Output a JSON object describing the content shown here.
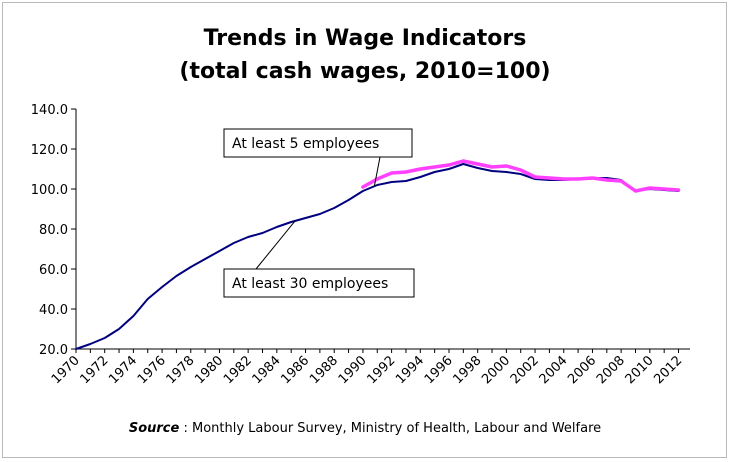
{
  "chart_data": {
    "type": "line",
    "title": "Trends in Wage Indicators",
    "subtitle": "(total cash wages, 2010=100)",
    "xlabel": "",
    "ylabel": "",
    "ylim": [
      20,
      140
    ],
    "yticks": [
      "20.0",
      "40.0",
      "60.0",
      "80.0",
      "100.0",
      "120.0",
      "140.0"
    ],
    "xticks": [
      "1970",
      "1972",
      "1974",
      "1976",
      "1978",
      "1980",
      "1982",
      "1984",
      "1986",
      "1988",
      "1990",
      "1992",
      "1994",
      "1996",
      "1998",
      "2000",
      "2002",
      "2004",
      "2006",
      "2008",
      "2010",
      "2012"
    ],
    "grid": false,
    "series": [
      {
        "name": "At least 30 employees",
        "color": "#00007f",
        "x": [
          1970,
          1971,
          1972,
          1973,
          1974,
          1975,
          1976,
          1977,
          1978,
          1979,
          1980,
          1981,
          1982,
          1983,
          1984,
          1985,
          1986,
          1987,
          1988,
          1989,
          1990,
          1991,
          1992,
          1993,
          1994,
          1995,
          1996,
          1997,
          1998,
          1999,
          2000,
          2001,
          2002,
          2003,
          2004,
          2005,
          2006,
          2007,
          2008,
          2009,
          2010,
          2011,
          2012
        ],
        "values": [
          20.0,
          22.5,
          25.5,
          30.0,
          36.5,
          45.0,
          51.0,
          56.5,
          61.0,
          65.0,
          69.0,
          73.0,
          76.0,
          78.0,
          81.0,
          83.5,
          85.5,
          87.5,
          90.5,
          94.5,
          99.0,
          102.0,
          103.5,
          104.0,
          106.0,
          108.5,
          110.0,
          112.5,
          110.5,
          109.0,
          108.5,
          107.5,
          105.0,
          104.5,
          104.5,
          105.0,
          105.5,
          105.5,
          104.5,
          99.0,
          100.0,
          99.5,
          99.0
        ]
      },
      {
        "name": "At least 5 employees",
        "color": "#ff40ff",
        "x": [
          1990,
          1991,
          1992,
          1993,
          1994,
          1995,
          1996,
          1997,
          1998,
          1999,
          2000,
          2001,
          2002,
          2003,
          2004,
          2005,
          2006,
          2007,
          2008,
          2009,
          2010,
          2011,
          2012
        ],
        "values": [
          101.0,
          105.0,
          108.0,
          108.5,
          110.0,
          111.0,
          112.0,
          114.0,
          112.5,
          111.0,
          111.5,
          109.5,
          106.0,
          105.5,
          105.0,
          105.0,
          105.5,
          104.5,
          104.0,
          99.0,
          100.5,
          100.0,
          99.5
        ]
      }
    ],
    "annotations": [
      {
        "text": "At least 5 employees",
        "series": "At least 5 employees"
      },
      {
        "text": "At least 30 employees",
        "series": "At least 30 employees"
      }
    ],
    "source_label": "Source",
    "source_sep": " : ",
    "source_text": "Monthly Labour Survey, Ministry of Health, Labour and Welfare"
  }
}
